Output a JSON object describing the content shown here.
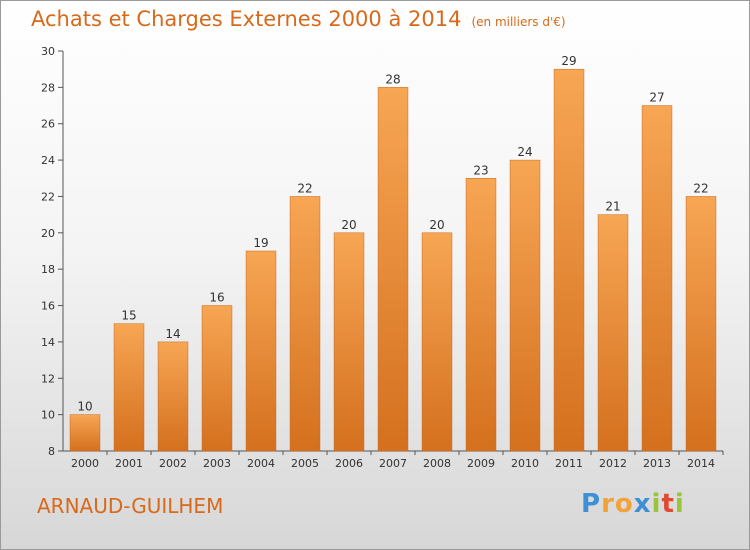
{
  "title": "Achats et Charges Externes 2000 à 2014",
  "subtitle": "(en milliers d'€)",
  "commune": "ARNAUD-GUILHEM",
  "logo": {
    "letters": [
      "P",
      "r",
      "o",
      "x",
      "i",
      "t",
      "i"
    ],
    "colors": [
      "#3d8fd6",
      "#f2a23a",
      "#f2a23a",
      "#3d8fd6",
      "#9ac43a",
      "#e04a2f",
      "#9ac43a"
    ]
  },
  "chart_data": {
    "type": "bar",
    "categories": [
      "2000",
      "2001",
      "2002",
      "2003",
      "2004",
      "2005",
      "2006",
      "2007",
      "2008",
      "2009",
      "2010",
      "2011",
      "2012",
      "2013",
      "2014"
    ],
    "values": [
      10,
      15,
      14,
      16,
      19,
      22,
      20,
      28,
      20,
      23,
      24,
      29,
      21,
      27,
      22
    ],
    "ylim": [
      8,
      30
    ],
    "yticks": [
      8,
      10,
      12,
      14,
      16,
      18,
      20,
      22,
      24,
      26,
      28,
      30
    ],
    "grid": false,
    "bar_color_top": "#f7a654",
    "bar_color_bottom": "#d4701e"
  }
}
